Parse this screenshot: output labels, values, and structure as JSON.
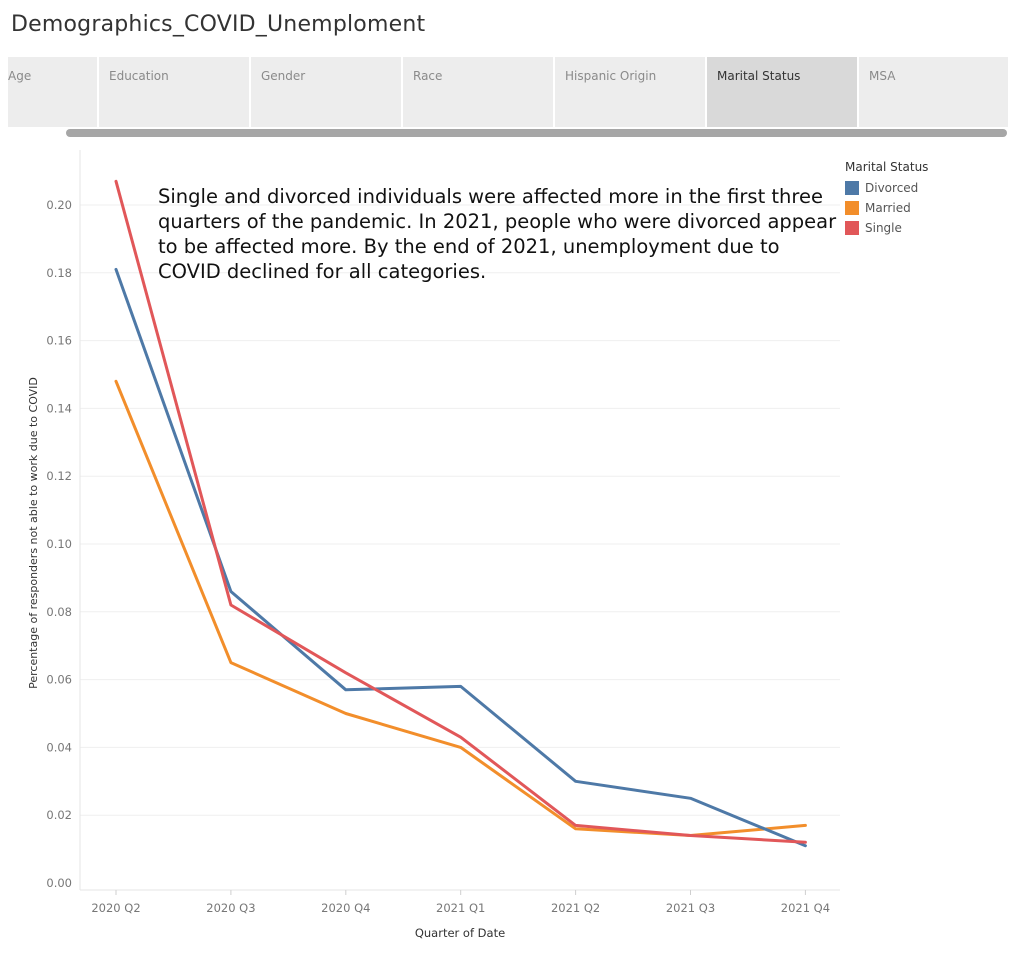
{
  "page": {
    "title": "Demographics_COVID_Unemploment"
  },
  "tabs": [
    {
      "label": "Age",
      "active": false
    },
    {
      "label": "Education",
      "active": false
    },
    {
      "label": "Gender",
      "active": false
    },
    {
      "label": "Race",
      "active": false
    },
    {
      "label": "Hispanic Origin",
      "active": false
    },
    {
      "label": "Marital Status",
      "active": true
    },
    {
      "label": "MSA",
      "active": false
    }
  ],
  "chart_data": {
    "type": "line",
    "title": "",
    "xlabel": "Quarter of Date",
    "ylabel": "Percentage of responders not able to work due to COVID",
    "categories": [
      "2020 Q2",
      "2020 Q3",
      "2020 Q4",
      "2021 Q1",
      "2021 Q2",
      "2021 Q3",
      "2021 Q4"
    ],
    "ylim": [
      0,
      0.22
    ],
    "yticks": [
      "0.00",
      "0.02",
      "0.04",
      "0.06",
      "0.08",
      "0.10",
      "0.12",
      "0.14",
      "0.16",
      "0.18",
      "0.20"
    ],
    "grid": true,
    "legend": {
      "title": "Marital Status",
      "placement": "right"
    },
    "series": [
      {
        "name": "Divorced",
        "color": "#4e79a7",
        "values": [
          0.181,
          0.086,
          0.057,
          0.058,
          0.03,
          0.025,
          0.011
        ]
      },
      {
        "name": "Married",
        "color": "#f28e2b",
        "values": [
          0.148,
          0.065,
          0.05,
          0.04,
          0.016,
          0.014,
          0.017
        ]
      },
      {
        "name": "Single",
        "color": "#e15759",
        "values": [
          0.207,
          0.082,
          0.062,
          0.043,
          0.017,
          0.014,
          0.012
        ]
      }
    ],
    "annotation": "Single and divorced individuals were affected more in the first three quarters of the pandemic. In 2021, people who were divorced appear to be affected more. By the end of 2021, unemployment due to COVID declined for all categories."
  }
}
